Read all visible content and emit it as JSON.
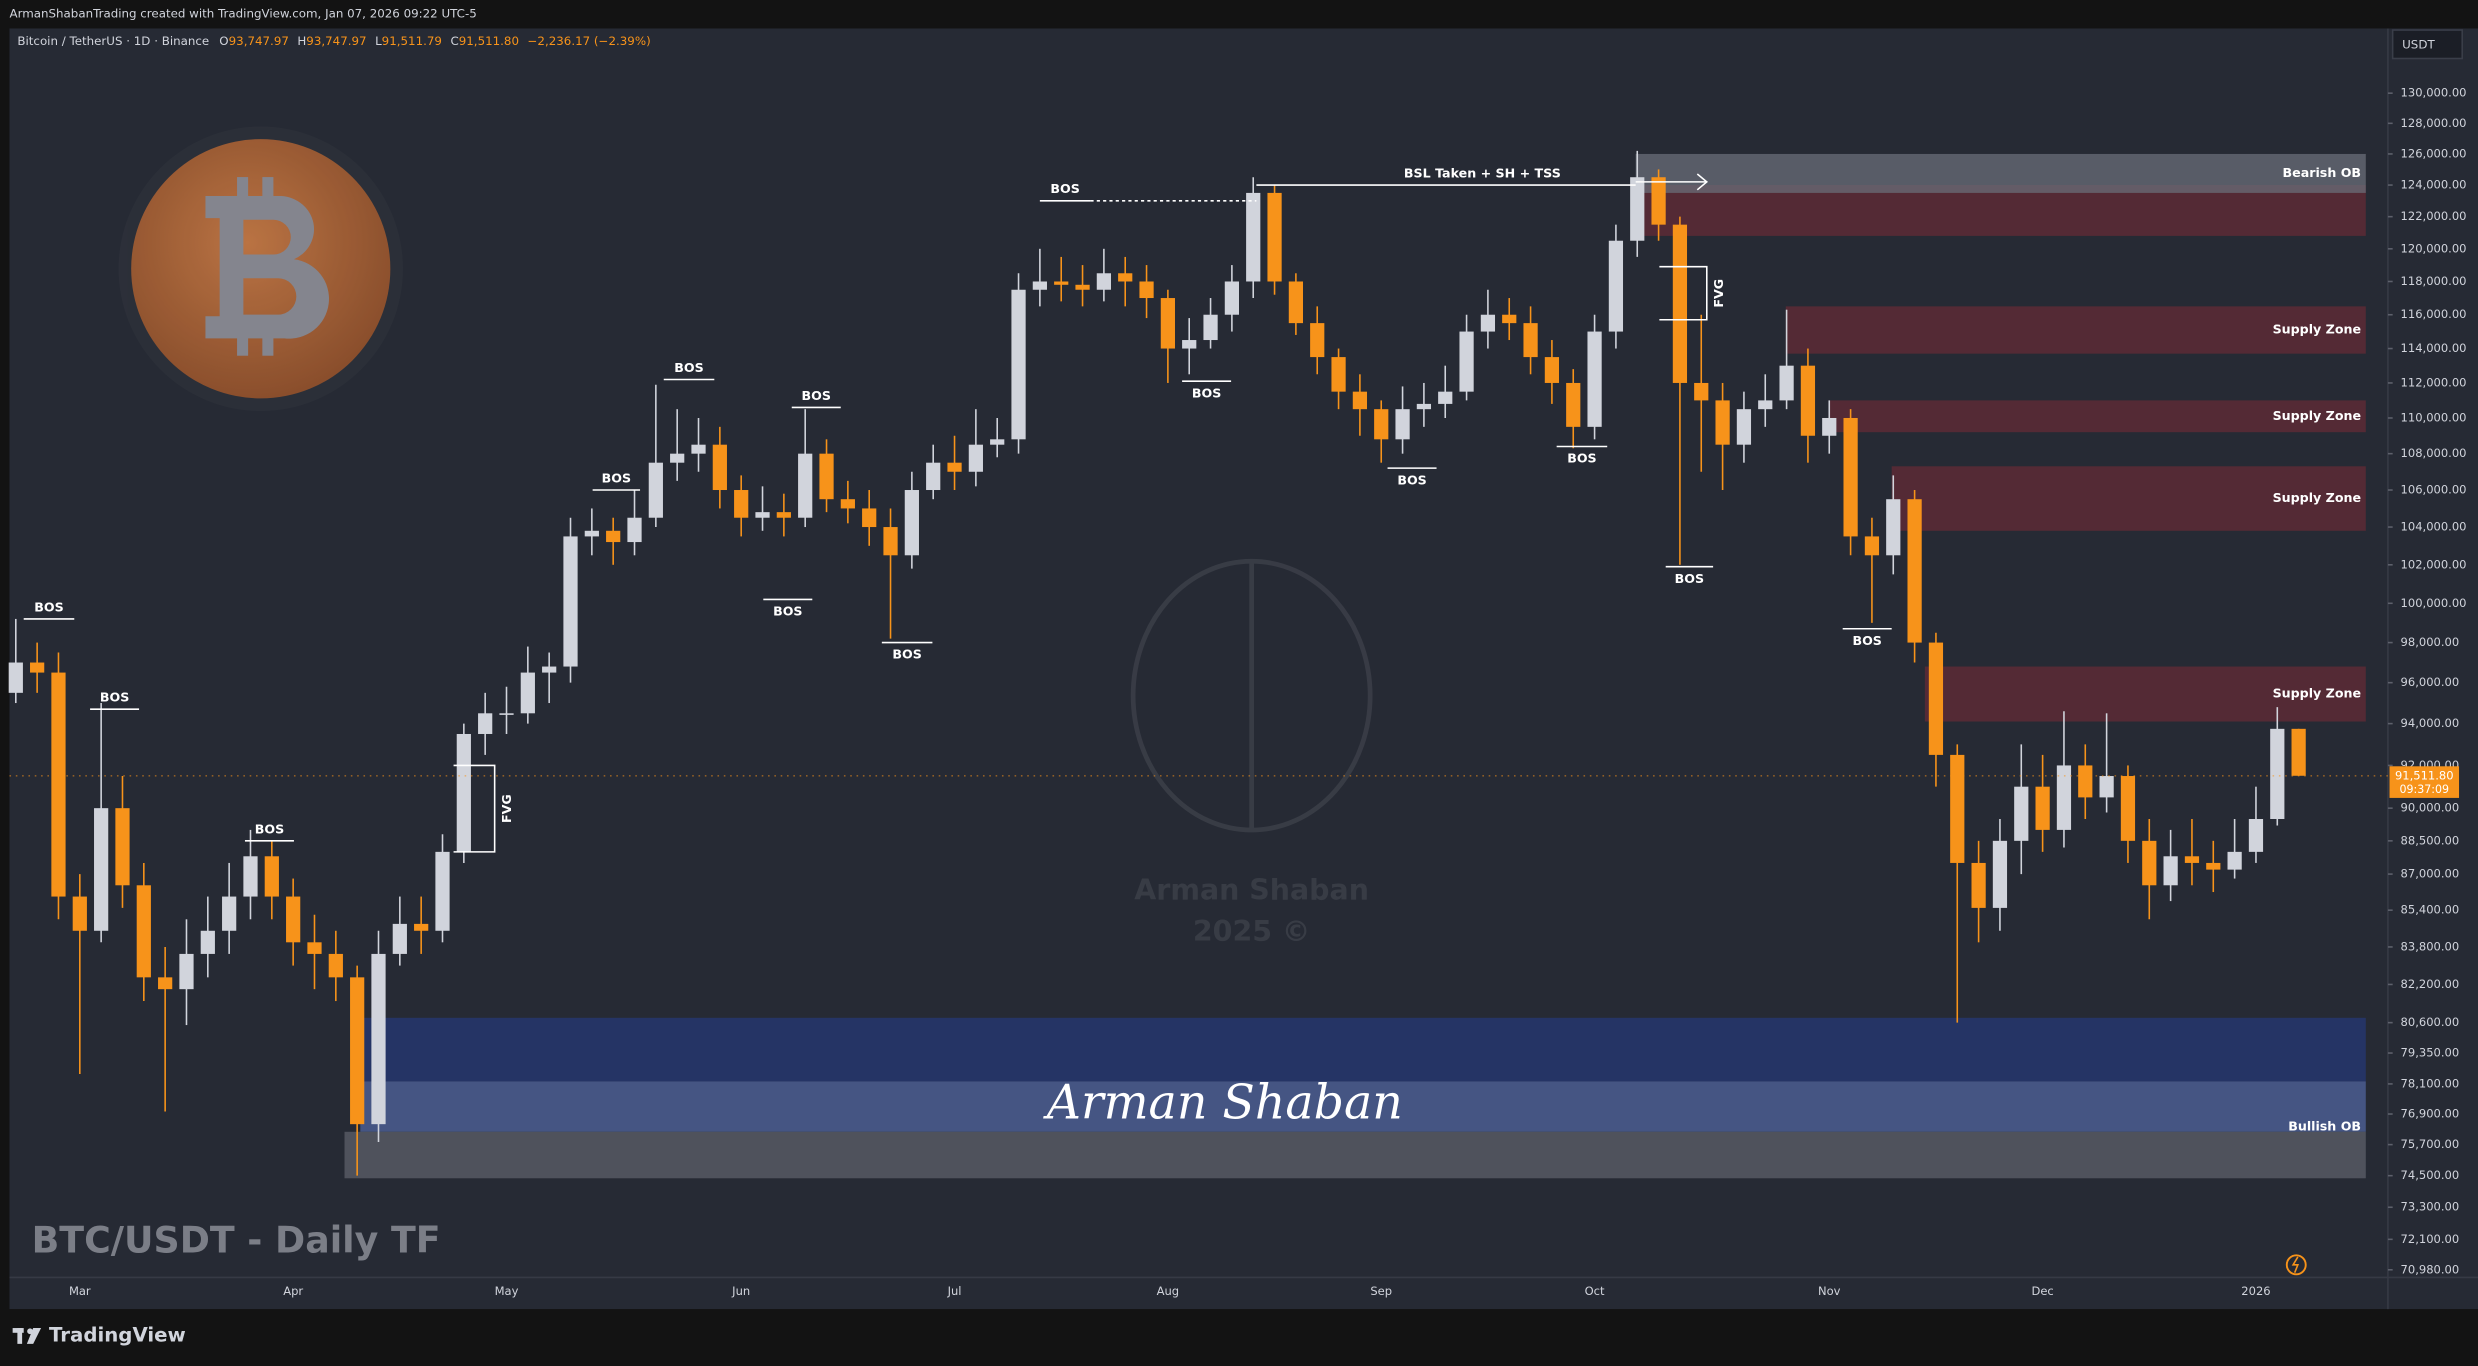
{
  "top_bar": "ArmanShabanTrading created with TradingView.com, Jan 07, 2026 09:22 UTC-5",
  "header": {
    "symbol": "Bitcoin / TetherUS · 1D · Binance",
    "ohlc": [
      {
        "key": "O",
        "value": "93,747.97"
      },
      {
        "key": "H",
        "value": "93,747.97"
      },
      {
        "key": "L",
        "value": "91,511.79"
      },
      {
        "key": "C",
        "value": "91,511.80"
      }
    ],
    "change": "−2,236.17 (−2.39%)"
  },
  "watermark": {
    "name": "Arman Shaban",
    "year": "2025 ©"
  },
  "signature": "Arman Shaban",
  "footer": "TradingView",
  "chart_data": {
    "type": "candlestick",
    "title": "BTC/USDT - Daily TF",
    "currency": "USDT",
    "log_scale": true,
    "grid": false,
    "up_color": "#d1d4dc",
    "down_color": "#f7931a",
    "ylim": [
      70700,
      134400
    ],
    "yticks": [
      {
        "value": 130000,
        "label": "130,000.00"
      },
      {
        "value": 128000,
        "label": "128,000.00"
      },
      {
        "value": 126000,
        "label": "126,000.00"
      },
      {
        "value": 124000,
        "label": "124,000.00"
      },
      {
        "value": 122000,
        "label": "122,000.00"
      },
      {
        "value": 120000,
        "label": "120,000.00"
      },
      {
        "value": 118000,
        "label": "118,000.00"
      },
      {
        "value": 116000,
        "label": "116,000.00"
      },
      {
        "value": 114000,
        "label": "114,000.00"
      },
      {
        "value": 112000,
        "label": "112,000.00"
      },
      {
        "value": 110000,
        "label": "110,000.00"
      },
      {
        "value": 108000,
        "label": "108,000.00"
      },
      {
        "value": 106000,
        "label": "106,000.00"
      },
      {
        "value": 104000,
        "label": "104,000.00"
      },
      {
        "value": 102000,
        "label": "102,000.00"
      },
      {
        "value": 100000,
        "label": "100,000.00"
      },
      {
        "value": 98000,
        "label": "98,000.00"
      },
      {
        "value": 96000,
        "label": "96,000.00"
      },
      {
        "value": 94000,
        "label": "94,000.00"
      },
      {
        "value": 92000,
        "label": "92,000.00"
      },
      {
        "value": 90000,
        "label": "90,000.00"
      },
      {
        "value": 88500,
        "label": "88,500.00"
      },
      {
        "value": 87000,
        "label": "87,000.00"
      },
      {
        "value": 85400,
        "label": "85,400.00"
      },
      {
        "value": 83800,
        "label": "83,800.00"
      },
      {
        "value": 82200,
        "label": "82,200.00"
      },
      {
        "value": 80600,
        "label": "80,600.00"
      },
      {
        "value": 79350,
        "label": "79,350.00"
      },
      {
        "value": 78100,
        "label": "78,100.00"
      },
      {
        "value": 76900,
        "label": "76,900.00"
      },
      {
        "value": 75700,
        "label": "75,700.00"
      },
      {
        "value": 74500,
        "label": "74,500.00"
      },
      {
        "value": 73300,
        "label": "73,300.00"
      },
      {
        "value": 72100,
        "label": "72,100.00"
      },
      {
        "value": 70980,
        "label": "70,980.00"
      }
    ],
    "last_price": {
      "value": 91511.8,
      "label": "91,511.80",
      "countdown": "09:37:09"
    },
    "categories": [
      null,
      null,
      null,
      "Mar",
      null,
      null,
      null,
      null,
      null,
      null,
      null,
      null,
      null,
      "Apr",
      null,
      null,
      null,
      null,
      null,
      null,
      null,
      null,
      null,
      "May",
      null,
      null,
      null,
      null,
      null,
      null,
      null,
      null,
      null,
      null,
      "Jun",
      null,
      null,
      null,
      null,
      null,
      null,
      null,
      null,
      null,
      "Jul",
      null,
      null,
      null,
      null,
      null,
      null,
      null,
      null,
      null,
      "Aug",
      null,
      null,
      null,
      null,
      null,
      null,
      null,
      null,
      null,
      "Sep",
      null,
      null,
      null,
      null,
      null,
      null,
      null,
      null,
      null,
      "Oct",
      null,
      null,
      null,
      null,
      null,
      null,
      null,
      null,
      null,
      null,
      "Nov",
      null,
      null,
      null,
      null,
      null,
      null,
      null,
      null,
      null,
      "Dec",
      null,
      null,
      null,
      null,
      null,
      null,
      null,
      null,
      null,
      "2026",
      null,
      null
    ],
    "open": [
      95500,
      97000,
      96500,
      86000,
      84500,
      90000,
      86500,
      82500,
      82000,
      83500,
      84500,
      86000,
      87800,
      86000,
      84000,
      83500,
      82500,
      76500,
      83500,
      84800,
      84500,
      88000,
      93500,
      94500,
      94500,
      96500,
      96800,
      103500,
      103800,
      103200,
      104500,
      107500,
      108000,
      108500,
      106000,
      104500,
      104800,
      104500,
      108000,
      105500,
      105000,
      104000,
      102500,
      106000,
      107500,
      107000,
      108500,
      108800,
      117500,
      118000,
      117800,
      117500,
      118500,
      118000,
      117000,
      114000,
      114500,
      116000,
      118000,
      123500,
      118000,
      115500,
      113500,
      111500,
      110500,
      108800,
      110500,
      110800,
      111500,
      115000,
      116000,
      115500,
      113500,
      112000,
      109500,
      115000,
      120500,
      124500,
      121500,
      112000,
      111000,
      108500,
      110500,
      111000,
      113000,
      109000,
      110000,
      103500,
      102500,
      105500,
      98000,
      92500,
      87500,
      85500,
      88500,
      91000,
      89000,
      92000,
      90500,
      91500,
      88500,
      86500,
      87800,
      87500,
      87200,
      88000,
      89500,
      93747.97
    ],
    "high": [
      99200,
      98000,
      97500,
      87000,
      95000,
      91500,
      87500,
      83800,
      85000,
      86000,
      87500,
      89000,
      88500,
      86800,
      85200,
      84500,
      83000,
      84500,
      86000,
      86000,
      88800,
      94000,
      95500,
      95800,
      97800,
      97500,
      104500,
      105000,
      104500,
      106000,
      111900,
      110500,
      110000,
      109500,
      106800,
      106200,
      105800,
      110500,
      108800,
      106500,
      106000,
      105000,
      107000,
      108500,
      109000,
      110500,
      110000,
      118500,
      120000,
      119500,
      119000,
      120000,
      119500,
      119000,
      117500,
      115800,
      117000,
      119000,
      124500,
      124000,
      118500,
      116500,
      114000,
      112500,
      111000,
      111800,
      112000,
      113000,
      116000,
      117500,
      117000,
      116500,
      114500,
      112800,
      116000,
      121500,
      126200,
      125000,
      122000,
      116000,
      112000,
      111500,
      112500,
      116300,
      114000,
      111000,
      110500,
      104500,
      106800,
      106000,
      98500,
      93000,
      88500,
      89500,
      93000,
      92500,
      94600,
      93000,
      94500,
      92000,
      89500,
      89000,
      89500,
      88500,
      89500,
      91000,
      94800,
      93747.97
    ],
    "low": [
      95000,
      95500,
      85000,
      78500,
      84000,
      85500,
      81500,
      77000,
      80500,
      82500,
      83500,
      85000,
      85000,
      83000,
      82000,
      81500,
      74500,
      75800,
      83000,
      83500,
      84000,
      87500,
      92500,
      93500,
      94000,
      95000,
      96000,
      102500,
      102000,
      102500,
      104000,
      106500,
      107000,
      105000,
      103500,
      103800,
      103500,
      104000,
      104800,
      104200,
      103000,
      98200,
      101800,
      105500,
      106000,
      106200,
      107800,
      108000,
      116500,
      116800,
      116500,
      116800,
      116500,
      115800,
      112000,
      112500,
      114000,
      115000,
      117000,
      117200,
      114800,
      112500,
      110500,
      109000,
      107500,
      108000,
      109500,
      110000,
      111000,
      114000,
      114500,
      112500,
      110800,
      108300,
      108800,
      114000,
      119500,
      120500,
      102000,
      107000,
      106000,
      107500,
      109500,
      110500,
      107500,
      108000,
      102500,
      99000,
      101500,
      97000,
      91000,
      80600,
      84000,
      84500,
      87000,
      88000,
      88200,
      89500,
      89800,
      87500,
      85000,
      85800,
      86500,
      86200,
      86800,
      87500,
      89200,
      91511.79
    ],
    "close": [
      97000,
      96500,
      86000,
      84500,
      90000,
      86500,
      82500,
      82000,
      83500,
      84500,
      86000,
      87800,
      86000,
      84000,
      83500,
      82500,
      76500,
      83500,
      84800,
      84500,
      88000,
      93500,
      94500,
      94500,
      96500,
      96800,
      103500,
      103800,
      103200,
      104500,
      107500,
      108000,
      108500,
      106000,
      104500,
      104800,
      104500,
      108000,
      105500,
      105000,
      104000,
      102500,
      106000,
      107500,
      107000,
      108500,
      108800,
      117500,
      118000,
      117800,
      117500,
      118500,
      118000,
      117000,
      114000,
      114500,
      116000,
      118000,
      123500,
      118000,
      115500,
      113500,
      111500,
      110500,
      108800,
      110500,
      110800,
      111500,
      115000,
      116000,
      115500,
      113500,
      112000,
      109500,
      115000,
      120500,
      124500,
      121500,
      112000,
      111000,
      108500,
      110500,
      111000,
      113000,
      109000,
      110000,
      103500,
      102500,
      105500,
      98000,
      92500,
      87500,
      85500,
      88500,
      91000,
      89000,
      92000,
      90500,
      91500,
      88500,
      86500,
      87800,
      87500,
      87200,
      88000,
      89500,
      93747.97,
      91511.8
    ],
    "zones": [
      {
        "low": 120800,
        "high": 124000,
        "color": "#5a2a35"
      },
      {
        "label": "Bearish OB",
        "low": 123500,
        "high": 126000,
        "color": "#6a6d78"
      },
      {
        "label": "Supply Zone",
        "low": 113700,
        "high": 116500,
        "color": "#5a2a35"
      },
      {
        "label": "Supply Zone",
        "low": 109200,
        "high": 111000,
        "color": "#5a2a35"
      },
      {
        "label": "Supply Zone",
        "low": 103800,
        "high": 107300,
        "color": "#5a2a35"
      },
      {
        "label": "Supply Zone",
        "low": 94100,
        "high": 96800,
        "color": "#5a2a35"
      },
      {
        "low": 78200,
        "high": 80800,
        "color": "#26356a"
      },
      {
        "low": 76200,
        "high": 78200,
        "color": "#495a8c"
      },
      {
        "label": "Bullish OB",
        "low": 74400,
        "high": 76200,
        "color": "#545761"
      }
    ],
    "annotations": [
      {
        "text": "BOS",
        "price": 99200
      },
      {
        "text": "BOS",
        "price": 94700
      },
      {
        "text": "BOS",
        "price": 88500
      },
      {
        "text": "BOS",
        "price": 106000
      },
      {
        "text": "BOS",
        "price": 112200
      },
      {
        "text": "BOS",
        "price": 110600
      },
      {
        "text": "BOS",
        "price": 100200
      },
      {
        "text": "BOS",
        "price": 98000
      },
      {
        "text": "BOS",
        "price": 123000
      },
      {
        "text": "BOS",
        "price": 112100
      },
      {
        "text": "BOS",
        "price": 107200
      },
      {
        "text": "BOS",
        "price": 108400
      },
      {
        "text": "BOS",
        "price": 101900
      },
      {
        "text": "BOS",
        "price": 98700
      },
      {
        "text": "BSL Taken + SH + TSS",
        "price": 124000
      }
    ],
    "fvg": [
      {
        "text": "FVG",
        "high": 92000,
        "low": 88000
      },
      {
        "text": "FVG",
        "high": 118900,
        "low": 115700
      }
    ]
  }
}
